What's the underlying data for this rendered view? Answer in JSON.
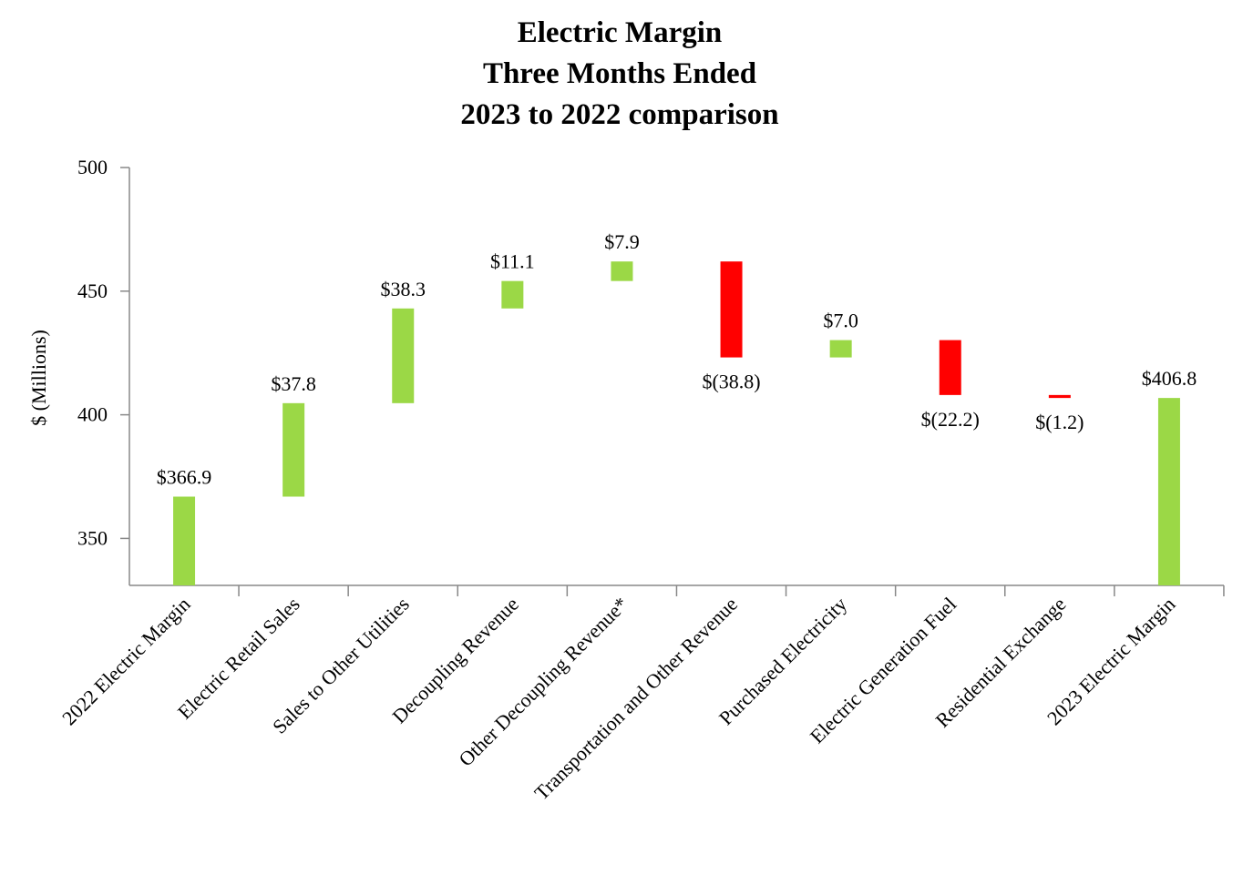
{
  "chart_data": {
    "type": "waterfall",
    "title": [
      "Electric Margin",
      "Three Months Ended",
      "2023 to 2022 comparison"
    ],
    "y_label": "$ (Millions)",
    "categories": [
      "2022 Electric Margin",
      "Electric Retail Sales",
      "Sales to Other Utilities",
      "Decoupling Revenue",
      "Other Decoupling Revenue*",
      "Transportation and Other Revenue",
      "Purchased Electricity",
      "Electric Generation Fuel",
      "Residential Exchange",
      "2023 Electric Margin"
    ],
    "values": [
      366.9,
      37.8,
      38.3,
      11.1,
      7.9,
      -38.8,
      7.0,
      -22.2,
      -1.2,
      406.8
    ],
    "value_labels": [
      "$366.9",
      "$37.8",
      "$38.3",
      "$11.1",
      "$7.9",
      "$(38.8)",
      "$7.0",
      "$(22.2)",
      "$(1.2)",
      "$406.8"
    ],
    "color": "#9bd846",
    "negative_color": "#ff0000",
    "ylim": [
      331,
      500
    ],
    "yticks": [
      350,
      400,
      450,
      500
    ]
  }
}
